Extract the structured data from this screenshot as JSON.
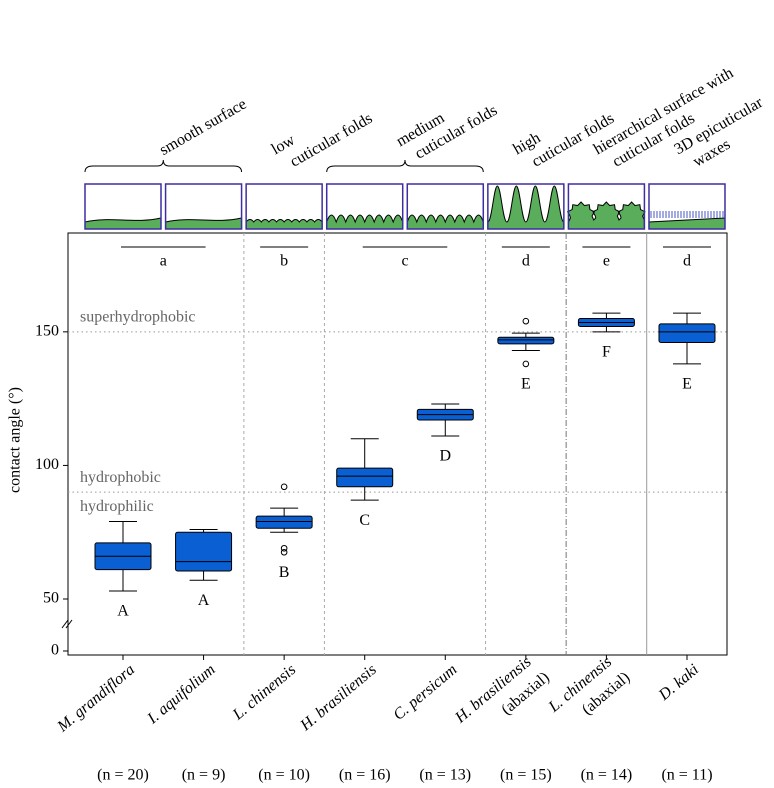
{
  "chart_data": {
    "type": "box",
    "ylabel": "contact angle (°)",
    "ylim": [
      0,
      187
    ],
    "yticks": [
      0,
      50,
      100,
      150
    ],
    "broken_axis": true,
    "color": "#0a5fd2",
    "categories": [
      "M. grandiflora",
      "I. aquifolium",
      "L. chinensis",
      "H. brasiliensis",
      "C. persicum",
      "H. brasiliensis",
      "L. chinensis",
      "D. kaki"
    ],
    "category_notes": [
      null,
      null,
      null,
      null,
      null,
      "(abaxial)",
      "(abaxial)",
      null
    ],
    "sample_size_labels": [
      "(n = 20)",
      "(n = 9)",
      "(n = 10)",
      "(n = 16)",
      "(n = 13)",
      "(n = 15)",
      "(n = 14)",
      "(n = 11)"
    ],
    "boxes": [
      {
        "whislo": 53,
        "q1": 61,
        "med": 66,
        "q3": 71,
        "whishi": 79,
        "fliers": [],
        "letter": "A"
      },
      {
        "whislo": 57,
        "q1": 60.5,
        "med": 64,
        "q3": 75,
        "whishi": 76,
        "fliers": [],
        "letter": "A"
      },
      {
        "whislo": 75,
        "q1": 76.5,
        "med": 79,
        "q3": 81,
        "whishi": 84,
        "fliers": [
          92,
          69,
          67.5
        ],
        "letter": "B"
      },
      {
        "whislo": 87,
        "q1": 92,
        "med": 96,
        "q3": 99,
        "whishi": 110,
        "fliers": [],
        "letter": "C"
      },
      {
        "whislo": 111,
        "q1": 117,
        "med": 119,
        "q3": 121,
        "whishi": 123,
        "fliers": [],
        "letter": "D"
      },
      {
        "whislo": 143,
        "q1": 145.5,
        "med": 147,
        "q3": 148,
        "whishi": 149.5,
        "fliers": [
          154,
          138
        ],
        "letter": "E"
      },
      {
        "whislo": 150,
        "q1": 152,
        "med": 153.5,
        "q3": 155,
        "whishi": 157,
        "fliers": [],
        "letter": "F"
      },
      {
        "whislo": 138,
        "q1": 146,
        "med": 150,
        "q3": 153,
        "whishi": 157,
        "fliers": [],
        "letter": "E"
      }
    ],
    "reference_lines": [
      {
        "value": 150,
        "labels": [
          "superhydrophobic"
        ]
      },
      {
        "value": 90,
        "labels": [
          "hydrophobic",
          "hydrophilic"
        ]
      }
    ],
    "groups": [
      {
        "label": "a",
        "span": 2
      },
      {
        "label": "b",
        "span": 1
      },
      {
        "label": "c",
        "span": 2
      },
      {
        "label": "d",
        "span": 1
      },
      {
        "label": "e",
        "span": 1
      },
      {
        "label": "d",
        "span": 1
      }
    ],
    "surfaces": [
      {
        "lines": [
          "smooth surface"
        ],
        "span": 2
      },
      {
        "lines": [
          "low",
          "cuticular folds"
        ],
        "span": 1
      },
      {
        "lines": [
          "medium",
          "cuticular folds"
        ],
        "span": 2
      },
      {
        "lines": [
          "high",
          "cuticular folds"
        ],
        "span": 1
      },
      {
        "lines": [
          "hierarchical surface with",
          "cuticular folds"
        ],
        "span": 1
      },
      {
        "lines": [
          "3D epicuticular",
          "waxes"
        ],
        "span": 1
      }
    ]
  }
}
